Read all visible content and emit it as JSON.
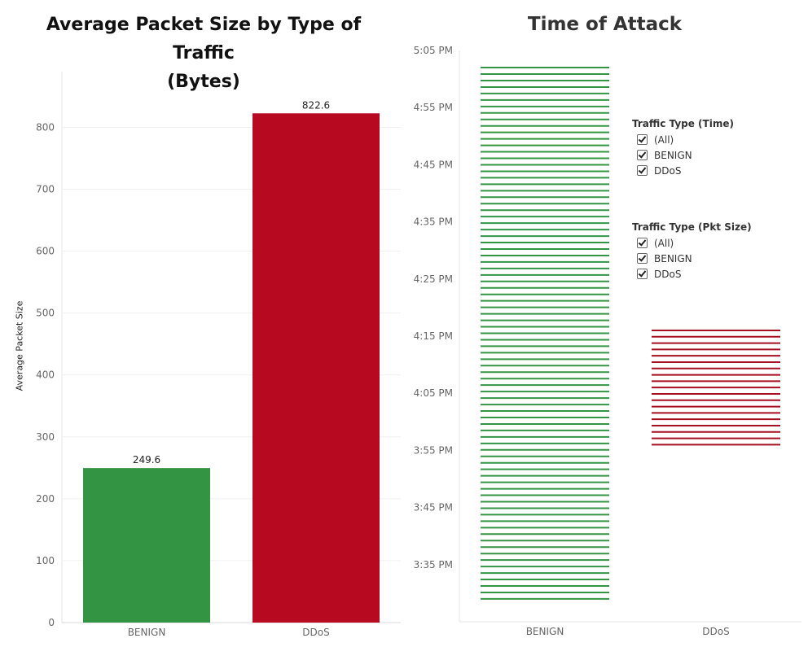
{
  "chart_data": [
    {
      "type": "bar",
      "title": "Average Packet Size by Type of Traffic (Bytes)",
      "xlabel": "",
      "ylabel": "Average Packet Size",
      "categories": [
        "BENIGN",
        "DDoS"
      ],
      "values": [
        249.6,
        822.6
      ],
      "data_labels": [
        "249.6",
        "822.6"
      ],
      "colors": [
        "#339444",
        "#b7091f"
      ],
      "ylim": [
        0,
        890
      ],
      "yticks": [
        0,
        100,
        200,
        300,
        400,
        500,
        600,
        700,
        800
      ],
      "grid": true
    },
    {
      "type": "gantt",
      "title": "Time of Attack",
      "xlabel": "",
      "ylabel": "",
      "categories": [
        "BENIGN",
        "DDoS"
      ],
      "time_range_minutes": [
        {
          "name": "BENIGN",
          "start": 929,
          "end": 1022,
          "color": "#339444"
        },
        {
          "name": "DDoS",
          "start": 956,
          "end": 976,
          "color": "#a50f1f"
        }
      ],
      "line_counts": [
        83,
        19
      ],
      "yticks_minutes": [
        935,
        945,
        955,
        965,
        975,
        985,
        995,
        1005,
        1015,
        1025
      ],
      "ytick_labels": [
        "3:35 PM",
        "3:45 PM",
        "3:55 PM",
        "4:05 PM",
        "4:15 PM",
        "4:25 PM",
        "4:35 PM",
        "4:45 PM",
        "4:55 PM",
        "5:05 PM"
      ],
      "ylim_minutes": [
        925,
        1025
      ]
    }
  ],
  "titles": {
    "left_line1": "Average Packet Size by Type of Traffic",
    "left_line2": "(Bytes)",
    "right": "Time of Attack"
  },
  "filters": [
    {
      "title": "Traffic Type (Time)",
      "items": [
        {
          "label": "(All)",
          "checked": true
        },
        {
          "label": "BENIGN",
          "checked": true
        },
        {
          "label": "DDoS",
          "checked": true
        }
      ]
    },
    {
      "title": "Traffic Type (Pkt Size)",
      "items": [
        {
          "label": "(All)",
          "checked": true
        },
        {
          "label": "BENIGN",
          "checked": true
        },
        {
          "label": "DDoS",
          "checked": true
        }
      ]
    }
  ]
}
